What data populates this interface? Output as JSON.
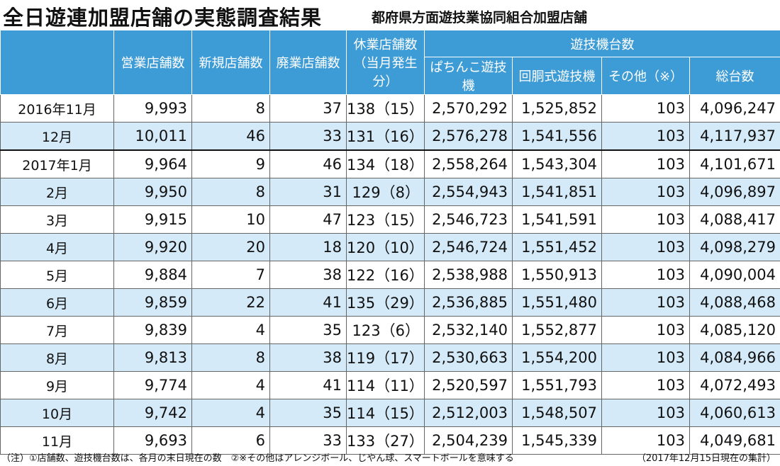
{
  "header": {
    "title": "全日遊連加盟店舗の実態調査結果",
    "subtitle": "都府県方面遊技業協同組合加盟店舗"
  },
  "table": {
    "columns": [
      "営業店舗数",
      "新規店舗数",
      "廃業店舗数"
    ],
    "closed_column": {
      "line1": "休業店舗数",
      "line2": "（当月発生分）"
    },
    "machine_group": {
      "title": "遊技機台数",
      "columns": [
        "ぱちんこ遊技機",
        "回胴式遊技機",
        "その他（※）",
        "総台数"
      ]
    },
    "rows": [
      [
        "2016年11月",
        "9,993",
        "8",
        "37",
        "138（15）",
        "2,570,292",
        "1,525,852",
        "103",
        "4,096,247"
      ],
      [
        "12月",
        "10,011",
        "46",
        "33",
        "131（16）",
        "2,576,278",
        "1,541,556",
        "103",
        "4,117,937"
      ],
      [
        "2017年1月",
        "9,964",
        "9",
        "46",
        "134（18）",
        "2,558,264",
        "1,543,304",
        "103",
        "4,101,671"
      ],
      [
        "2月",
        "9,950",
        "8",
        "31",
        "129（8）",
        "2,554,943",
        "1,541,851",
        "103",
        "4,096,897"
      ],
      [
        "3月",
        "9,915",
        "10",
        "47",
        "123（15）",
        "2,546,723",
        "1,541,591",
        "103",
        "4,088,417"
      ],
      [
        "4月",
        "9,920",
        "20",
        "18",
        "120（10）",
        "2,546,724",
        "1,551,452",
        "103",
        "4,098,279"
      ],
      [
        "5月",
        "9,884",
        "7",
        "38",
        "122（16）",
        "2,538,988",
        "1,550,913",
        "103",
        "4,090,004"
      ],
      [
        "6月",
        "9,859",
        "22",
        "41",
        "135（29）",
        "2,536,885",
        "1,551,480",
        "103",
        "4,088,468"
      ],
      [
        "7月",
        "9,839",
        "4",
        "35",
        "123（6）",
        "2,532,140",
        "1,552,877",
        "103",
        "4,085,120"
      ],
      [
        "8月",
        "9,813",
        "8",
        "38",
        "119（17）",
        "2,530,663",
        "1,554,200",
        "103",
        "4,084,966"
      ],
      [
        "9月",
        "9,774",
        "4",
        "41",
        "114（11）",
        "2,520,597",
        "1,551,793",
        "103",
        "4,072,493"
      ],
      [
        "10月",
        "9,742",
        "4",
        "35",
        "114（15）",
        "2,512,003",
        "1,548,507",
        "103",
        "4,060,613"
      ],
      [
        "11月",
        "9,693",
        "6",
        "33",
        "133（27）",
        "2,504,239",
        "1,545,339",
        "103",
        "4,049,681"
      ]
    ]
  },
  "footer": {
    "note": "（注）①店舗数、遊技機台数は、各月の末日現在の数　②※その他はアレンジボール、じやん球、スマートボールを意味する",
    "date": "（2017年12月15日現在の集計）"
  }
}
